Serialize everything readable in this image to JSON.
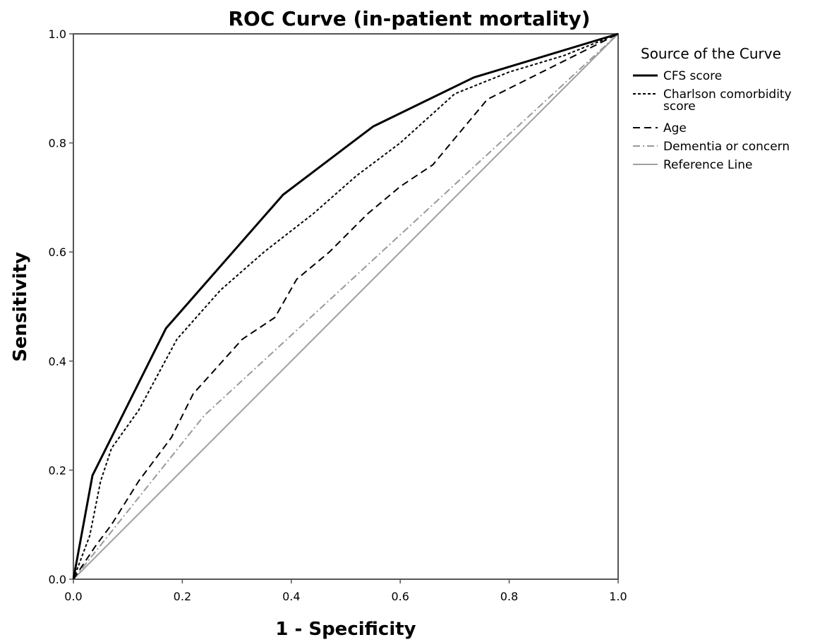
{
  "chart_data": {
    "type": "line",
    "title": "ROC Curve (in-patient mortality)",
    "xlabel": "1 - Specificity",
    "ylabel": "Sensitivity",
    "xlim": [
      0,
      1
    ],
    "ylim": [
      0,
      1
    ],
    "xticks": [
      "0.0",
      "0.2",
      "0.4",
      "0.6",
      "0.8",
      "1.0"
    ],
    "yticks": [
      "0.0",
      "0.2",
      "0.4",
      "0.6",
      "0.8",
      "1.0"
    ],
    "grid": false,
    "legend": {
      "title": "Source of the Curve",
      "placement": "right"
    },
    "series": [
      {
        "name": "CFS score",
        "color": "#000000",
        "dash": "solid",
        "x": [
          0.0,
          0.035,
          0.17,
          0.385,
          0.55,
          0.735,
          1.0
        ],
        "y": [
          0.0,
          0.19,
          0.46,
          0.705,
          0.83,
          0.92,
          1.0
        ]
      },
      {
        "name": "Charlson comorbidity score",
        "legend_lines": [
          "Charlson comorbidity",
          "score"
        ],
        "color": "#000000",
        "dash": "dotted",
        "x": [
          0.0,
          0.03,
          0.05,
          0.07,
          0.12,
          0.19,
          0.27,
          0.35,
          0.44,
          0.52,
          0.6,
          0.7,
          0.8,
          0.9,
          1.0
        ],
        "y": [
          0.0,
          0.08,
          0.18,
          0.24,
          0.31,
          0.44,
          0.53,
          0.6,
          0.67,
          0.74,
          0.8,
          0.89,
          0.93,
          0.96,
          1.0
        ]
      },
      {
        "name": "Age",
        "color": "#000000",
        "dash": "dashed",
        "x": [
          0.0,
          0.04,
          0.07,
          0.12,
          0.18,
          0.22,
          0.31,
          0.37,
          0.41,
          0.47,
          0.54,
          0.6,
          0.66,
          0.71,
          0.76,
          0.82,
          0.9,
          1.0
        ],
        "y": [
          0.0,
          0.06,
          0.1,
          0.18,
          0.26,
          0.34,
          0.44,
          0.48,
          0.55,
          0.6,
          0.67,
          0.72,
          0.76,
          0.82,
          0.88,
          0.91,
          0.95,
          1.0
        ]
      },
      {
        "name": "Dementia or concern",
        "color": "#999999",
        "dash": "dashdot",
        "x": [
          0.0,
          0.24,
          1.0
        ],
        "y": [
          0.0,
          0.3,
          1.0
        ]
      },
      {
        "name": "Reference Line",
        "color": "#a0a0a0",
        "dash": "solid",
        "x": [
          0.0,
          1.0
        ],
        "y": [
          0.0,
          1.0
        ]
      }
    ]
  }
}
